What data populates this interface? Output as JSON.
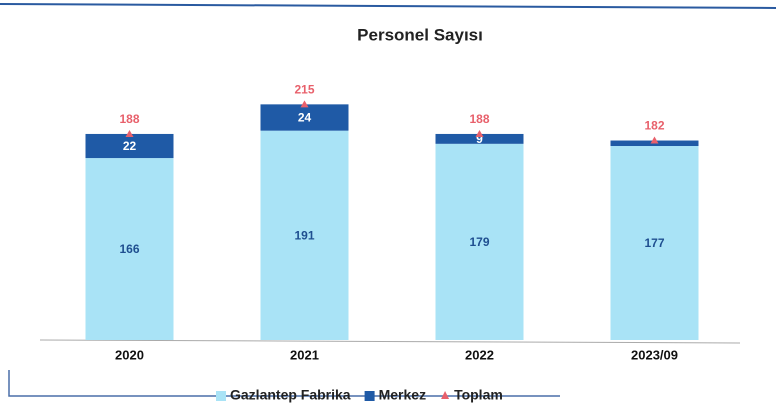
{
  "chart_data": {
    "type": "stacked_bar",
    "title": "Personel Sayısı",
    "categories": [
      "2020",
      "2021",
      "2022",
      "2023/09"
    ],
    "series": [
      {
        "name": "Gazlantep Fabrika",
        "color": "#a9e3f6",
        "values": [
          166,
          191,
          179,
          177
        ]
      },
      {
        "name": "Merkez",
        "color": "#1f5aa6",
        "values": [
          22,
          24,
          9,
          5
        ],
        "value_labels": [
          "22",
          "24",
          "9",
          null
        ]
      },
      {
        "name": "Toplam",
        "type": "marker",
        "color": "#e8606b",
        "values": [
          188,
          215,
          188,
          182
        ]
      }
    ],
    "ylim": [
      0,
      250
    ],
    "legend": "bottom"
  }
}
